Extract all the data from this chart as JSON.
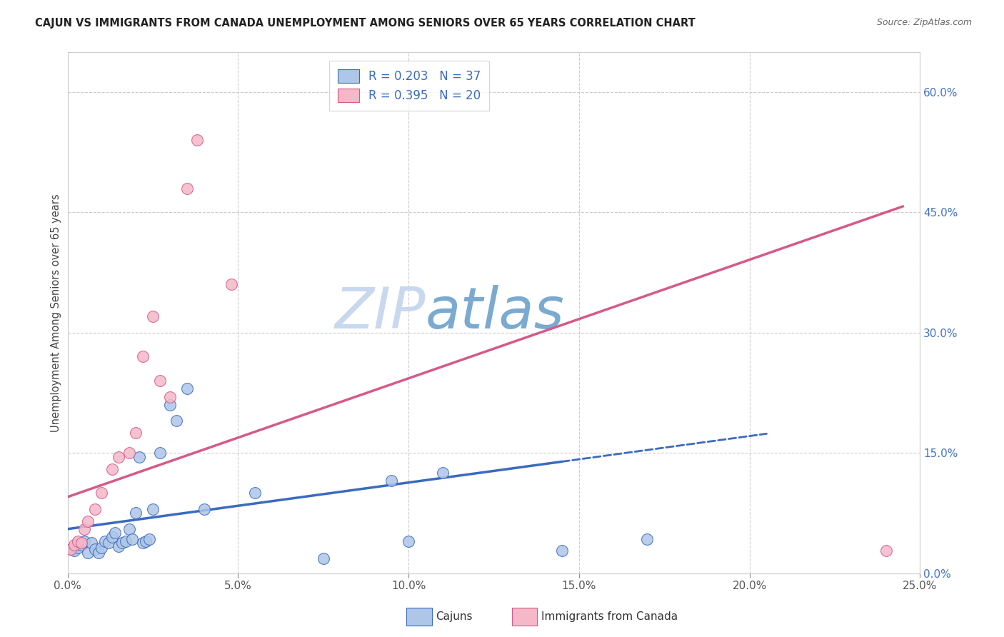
{
  "title": "CAJUN VS IMMIGRANTS FROM CANADA UNEMPLOYMENT AMONG SENIORS OVER 65 YEARS CORRELATION CHART",
  "source": "Source: ZipAtlas.com",
  "ylabel": "Unemployment Among Seniors over 65 years",
  "xlim": [
    0,
    0.25
  ],
  "ylim": [
    0,
    0.65
  ],
  "xticks": [
    0.0,
    0.05,
    0.1,
    0.15,
    0.2,
    0.25
  ],
  "yticks_right": [
    0.0,
    0.15,
    0.3,
    0.45,
    0.6
  ],
  "cajun_R": 0.203,
  "cajun_N": 37,
  "canada_R": 0.395,
  "canada_N": 20,
  "cajun_color": "#aec6e8",
  "canada_color": "#f4b8c8",
  "cajun_line_color": "#3a6bbf",
  "canada_line_color": "#d45a8a",
  "watermark_zip": "ZIP",
  "watermark_atlas": "atlas",
  "watermark_color_zip": "#c8d8ee",
  "watermark_color_atlas": "#7aaad0",
  "background_color": "#ffffff",
  "grid_color": "#cccccc",
  "cajun_x": [
    0.001,
    0.002,
    0.003,
    0.004,
    0.005,
    0.006,
    0.007,
    0.008,
    0.009,
    0.01,
    0.011,
    0.012,
    0.013,
    0.014,
    0.015,
    0.016,
    0.017,
    0.018,
    0.019,
    0.02,
    0.021,
    0.022,
    0.023,
    0.024,
    0.025,
    0.027,
    0.03,
    0.032,
    0.035,
    0.04,
    0.055,
    0.075,
    0.095,
    0.1,
    0.11,
    0.145,
    0.17
  ],
  "cajun_y": [
    0.03,
    0.028,
    0.032,
    0.035,
    0.04,
    0.025,
    0.038,
    0.03,
    0.025,
    0.032,
    0.04,
    0.038,
    0.045,
    0.05,
    0.033,
    0.038,
    0.04,
    0.055,
    0.042,
    0.075,
    0.145,
    0.038,
    0.04,
    0.042,
    0.08,
    0.15,
    0.21,
    0.19,
    0.23,
    0.08,
    0.1,
    0.018,
    0.115,
    0.04,
    0.125,
    0.028,
    0.042
  ],
  "canada_x": [
    0.001,
    0.002,
    0.003,
    0.004,
    0.005,
    0.006,
    0.008,
    0.01,
    0.013,
    0.015,
    0.018,
    0.02,
    0.022,
    0.025,
    0.027,
    0.03,
    0.035,
    0.038,
    0.048,
    0.24
  ],
  "canada_y": [
    0.03,
    0.035,
    0.04,
    0.038,
    0.055,
    0.065,
    0.08,
    0.1,
    0.13,
    0.145,
    0.15,
    0.175,
    0.27,
    0.32,
    0.24,
    0.22,
    0.48,
    0.54,
    0.36,
    0.028
  ],
  "cajun_line_x0": 0.0,
  "cajun_line_x_solid_end": 0.145,
  "cajun_line_x_dash_end": 0.205,
  "cajun_line_y0": 0.055,
  "cajun_line_slope": 0.58,
  "canada_line_x0": 0.0,
  "canada_line_x_end": 0.245,
  "canada_line_y0": 0.095,
  "canada_line_slope": 1.48
}
